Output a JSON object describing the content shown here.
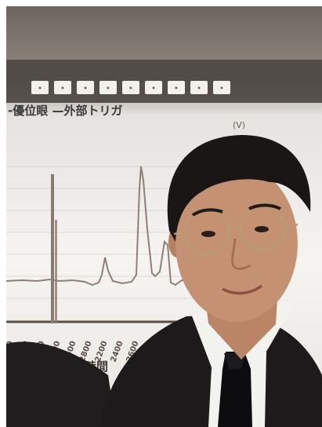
{
  "slide": {
    "title": "-優位眼 —外部トリガ",
    "unit": "(V)",
    "x_axis_label": "時間",
    "x_ticks": [
      "1800",
      "2000",
      "2200",
      "2400",
      "2600",
      "2800",
      "2200",
      "2400",
      "2600"
    ]
  },
  "scene": {
    "subject": "man with glasses in a dark suit",
    "background": "projected slide with a line graph"
  },
  "colors": {
    "wall": "#f4f2ef",
    "graph_line": "#8f7f78",
    "suit": "#1f1d1d",
    "shirt": "#f2f2ef",
    "tie": "#0d0d0f",
    "hair": "#191615",
    "skin": "#c49272"
  }
}
